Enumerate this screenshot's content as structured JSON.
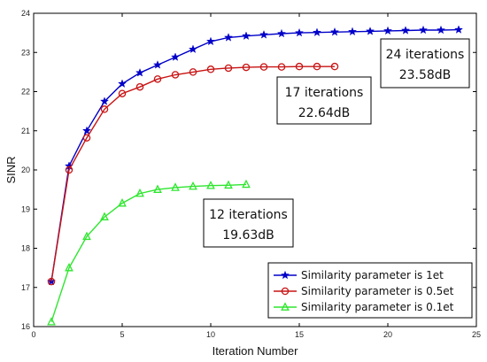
{
  "chart_data": {
    "type": "line",
    "xlabel": "Iteration Number",
    "ylabel": "SINR",
    "xlim": [
      0,
      25
    ],
    "ylim": [
      16,
      24
    ],
    "xticks": [
      0,
      5,
      10,
      15,
      20,
      25
    ],
    "yticks": [
      16,
      17,
      18,
      19,
      20,
      21,
      22,
      23,
      24
    ],
    "grid": false,
    "legend_position": "bottom-right",
    "series": [
      {
        "name": "Similarity parameter is 1et",
        "color": "#0000c8",
        "marker": "star",
        "x": [
          1,
          2,
          3,
          4,
          5,
          6,
          7,
          8,
          9,
          10,
          11,
          12,
          13,
          14,
          15,
          16,
          17,
          18,
          19,
          20,
          21,
          22,
          23,
          24
        ],
        "y": [
          17.15,
          20.1,
          21.0,
          21.75,
          22.2,
          22.48,
          22.68,
          22.88,
          23.08,
          23.28,
          23.38,
          23.42,
          23.45,
          23.48,
          23.5,
          23.51,
          23.52,
          23.53,
          23.54,
          23.55,
          23.56,
          23.57,
          23.57,
          23.58
        ]
      },
      {
        "name": "Similarity parameter is 0.5et",
        "color": "#c81414",
        "marker": "circle",
        "x": [
          1,
          2,
          3,
          4,
          5,
          6,
          7,
          8,
          9,
          10,
          11,
          12,
          13,
          14,
          15,
          16,
          17
        ],
        "y": [
          17.15,
          20.0,
          20.82,
          21.55,
          21.95,
          22.12,
          22.32,
          22.43,
          22.5,
          22.57,
          22.6,
          22.62,
          22.63,
          22.63,
          22.64,
          22.64,
          22.64
        ]
      },
      {
        "name": "Similarity parameter is 0.1et",
        "color": "#2ee62e",
        "marker": "triangle",
        "x": [
          1,
          2,
          3,
          4,
          5,
          6,
          7,
          8,
          9,
          10,
          11,
          12
        ],
        "y": [
          16.12,
          17.5,
          18.3,
          18.8,
          19.15,
          19.4,
          19.5,
          19.55,
          19.58,
          19.6,
          19.61,
          19.63
        ]
      }
    ],
    "annotations": [
      {
        "line1": "24 iterations",
        "line2": "23.58dB"
      },
      {
        "line1": "17 iterations",
        "line2": "22.64dB"
      },
      {
        "line1": "12 iterations",
        "line2": "19.63dB"
      }
    ]
  }
}
